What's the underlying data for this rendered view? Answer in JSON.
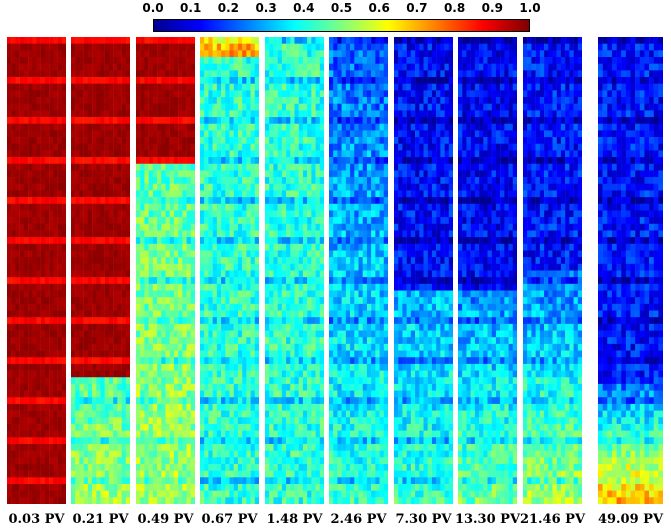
{
  "colorbar": {
    "ticks": [
      "0.0",
      "0.1",
      "0.2",
      "0.3",
      "0.4",
      "0.5",
      "0.6",
      "0.7",
      "0.8",
      "0.9",
      "1.0"
    ],
    "colormap": [
      "#00008f",
      "#0000ff",
      "#007fff",
      "#00ffff",
      "#7fff7f",
      "#ffff00",
      "#ff7f00",
      "#ff0000",
      "#7f0000"
    ]
  },
  "panels": [
    {
      "label": "0.03 PV"
    },
    {
      "label": "0.21 PV"
    },
    {
      "label": "0.49 PV"
    },
    {
      "label": "0.67 PV"
    },
    {
      "label": "1.48 PV"
    },
    {
      "label": "2.46 PV"
    },
    {
      "label": "7.30 PV"
    },
    {
      "label": "13.30 PV"
    },
    {
      "label": "21.46 PV"
    },
    {
      "label": "49.09 PV"
    }
  ]
}
